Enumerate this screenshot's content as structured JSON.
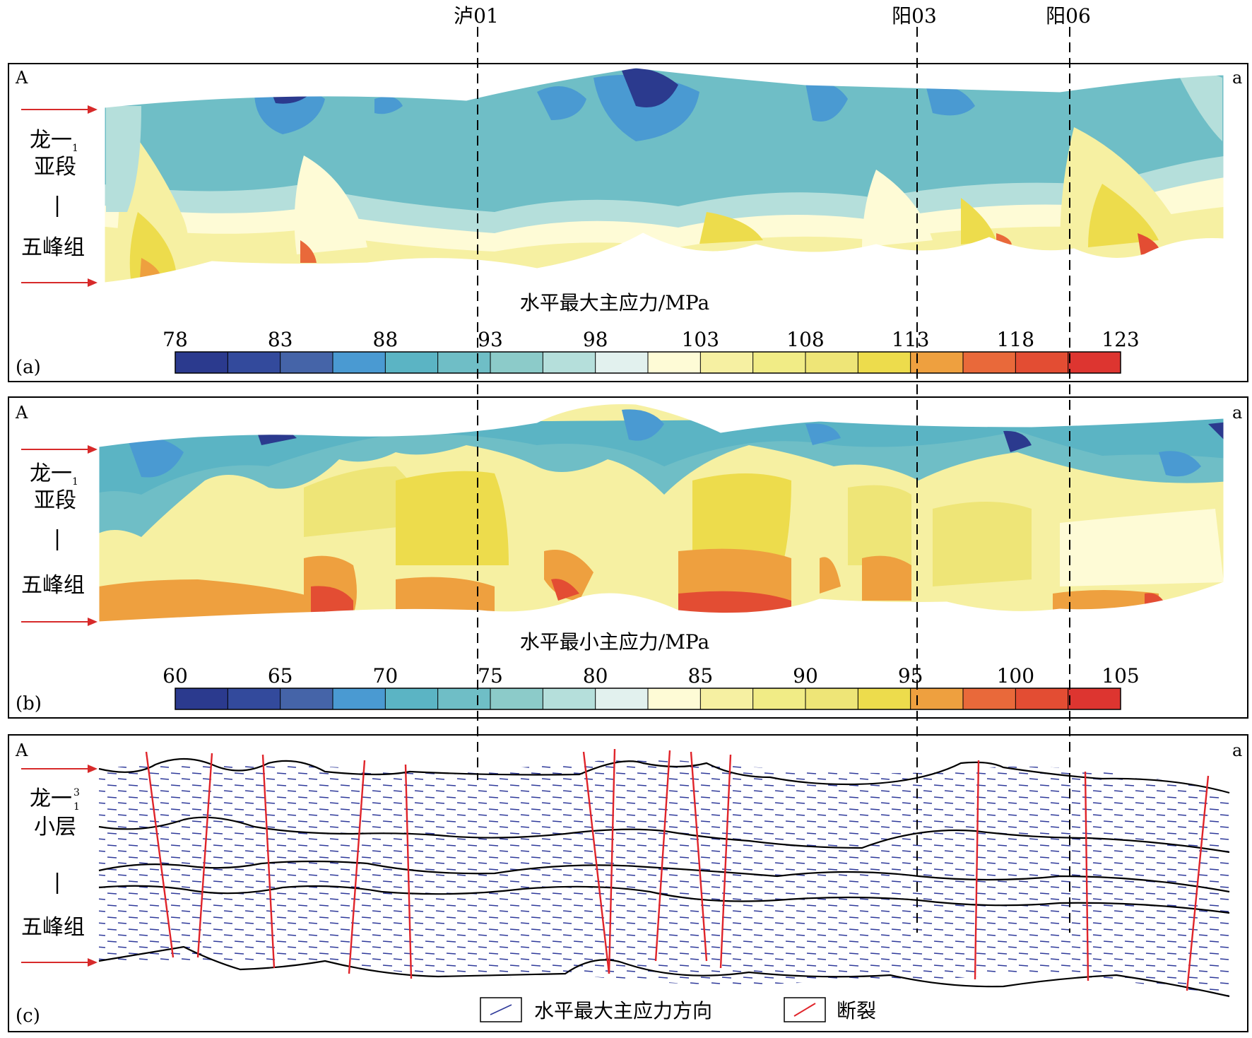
{
  "wells": [
    "泸01",
    "阳03",
    "阳06"
  ],
  "corner_left": "A",
  "corner_right": "a",
  "panels": [
    {
      "id": "a",
      "tag": "(a)",
      "side_label_top": "龙一",
      "side_label_sub": "1",
      "side_label_line2": "亚段",
      "side_label_dash": "|",
      "side_label_bottom": "五峰组",
      "colorbar_title": "水平最大主应力/MPa",
      "ticks": [
        "78",
        "83",
        "88",
        "93",
        "98",
        "103",
        "108",
        "113",
        "118",
        "123"
      ]
    },
    {
      "id": "b",
      "tag": "(b)",
      "side_label_top": "龙一",
      "side_label_sub": "1",
      "side_label_line2": "亚段",
      "side_label_dash": "|",
      "side_label_bottom": "五峰组",
      "colorbar_title": "水平最小主应力/MPa",
      "ticks": [
        "60",
        "65",
        "70",
        "75",
        "80",
        "85",
        "90",
        "95",
        "100",
        "105"
      ]
    },
    {
      "id": "c",
      "tag": "(c)",
      "side_label_top": "龙一",
      "side_label_sub": "1",
      "side_label_sup": "3",
      "side_label_line2": "小层",
      "side_label_dash": "|",
      "side_label_bottom": "五峰组"
    }
  ],
  "legend": {
    "stress_direction": "水平最大主应力方向",
    "fault": "断裂"
  },
  "colors": {
    "scale": [
      "#2b3a8e",
      "#334a9c",
      "#4564a8",
      "#4a9ad2",
      "#5bb4c4",
      "#6fbec6",
      "#8ccbc9",
      "#b5dfdb",
      "#e2f1ee",
      "#fefbd6",
      "#f6f0a2",
      "#f1ec86",
      "#eee577",
      "#eddc4c",
      "#eea03f",
      "#e9693a",
      "#e34d33",
      "#dd3530"
    ],
    "fault": "#e0242a",
    "dash": "#2f3a9a",
    "arrow": "#d72a2a"
  }
}
